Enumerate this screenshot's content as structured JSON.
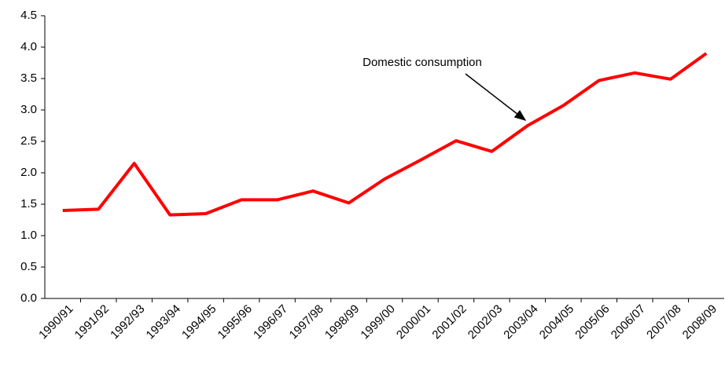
{
  "chart_data": {
    "type": "line",
    "annotation": "Domestic consumption",
    "categories": [
      "1990/91",
      "1991/92",
      "1992/93",
      "1993/94",
      "1994/95",
      "1995/96",
      "1996/97",
      "1997/98",
      "1998/99",
      "1999/00",
      "2000/01",
      "2001/02",
      "2002/03",
      "2003/04",
      "2004/05",
      "2005/06",
      "2006/07",
      "2007/08",
      "2008/09"
    ],
    "series": [
      {
        "color": "#ff0000",
        "values": [
          1.4,
          1.42,
          2.15,
          1.33,
          1.35,
          1.57,
          1.57,
          1.71,
          1.52,
          1.9,
          2.2,
          2.51,
          2.34,
          2.75,
          3.07,
          3.47,
          3.59,
          3.49,
          3.9
        ]
      }
    ],
    "ylim": [
      0,
      4.5
    ],
    "yticks": [
      {
        "value": 0,
        "label": "0.0"
      },
      0.5,
      {
        "value": 1,
        "label": "1.0"
      },
      1.5,
      {
        "value": 2,
        "label": "2.0"
      },
      2.5,
      {
        "value": 3,
        "label": "3.0"
      },
      3.5,
      {
        "value": 4,
        "label": "4.0"
      },
      4.5
    ],
    "grid": false
  }
}
